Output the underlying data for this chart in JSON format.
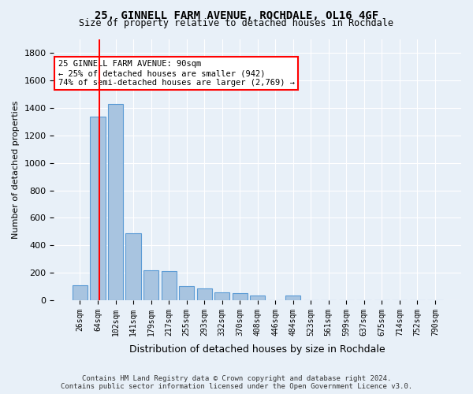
{
  "title_line1": "25, GINNELL FARM AVENUE, ROCHDALE, OL16 4GF",
  "title_line2": "Size of property relative to detached houses in Rochdale",
  "xlabel": "Distribution of detached houses by size in Rochdale",
  "ylabel": "Number of detached properties",
  "bar_color": "#a8c4e0",
  "bar_edge_color": "#5b9bd5",
  "red_line_x": 1,
  "annotation_text": "25 GINNELL FARM AVENUE: 90sqm\n← 25% of detached houses are smaller (942)\n74% of semi-detached houses are larger (2,769) →",
  "annotation_box_color": "white",
  "annotation_box_edge_color": "red",
  "categories": [
    "26sqm",
    "64sqm",
    "102sqm",
    "141sqm",
    "179sqm",
    "217sqm",
    "255sqm",
    "293sqm",
    "332sqm",
    "370sqm",
    "408sqm",
    "446sqm",
    "484sqm",
    "523sqm",
    "561sqm",
    "599sqm",
    "637sqm",
    "675sqm",
    "714sqm",
    "752sqm",
    "790sqm"
  ],
  "values": [
    110,
    1340,
    1430,
    490,
    215,
    210,
    105,
    85,
    55,
    50,
    35,
    0,
    35,
    0,
    0,
    0,
    0,
    0,
    0,
    0,
    0
  ],
  "ylim": [
    0,
    1900
  ],
  "yticks": [
    0,
    200,
    400,
    600,
    800,
    1000,
    1200,
    1400,
    1600,
    1800
  ],
  "footnote": "Contains HM Land Registry data © Crown copyright and database right 2024.\nContains public sector information licensed under the Open Government Licence v3.0.",
  "background_color": "#e8f0f8",
  "plot_bg_color": "#e8f0f8",
  "grid_color": "white"
}
